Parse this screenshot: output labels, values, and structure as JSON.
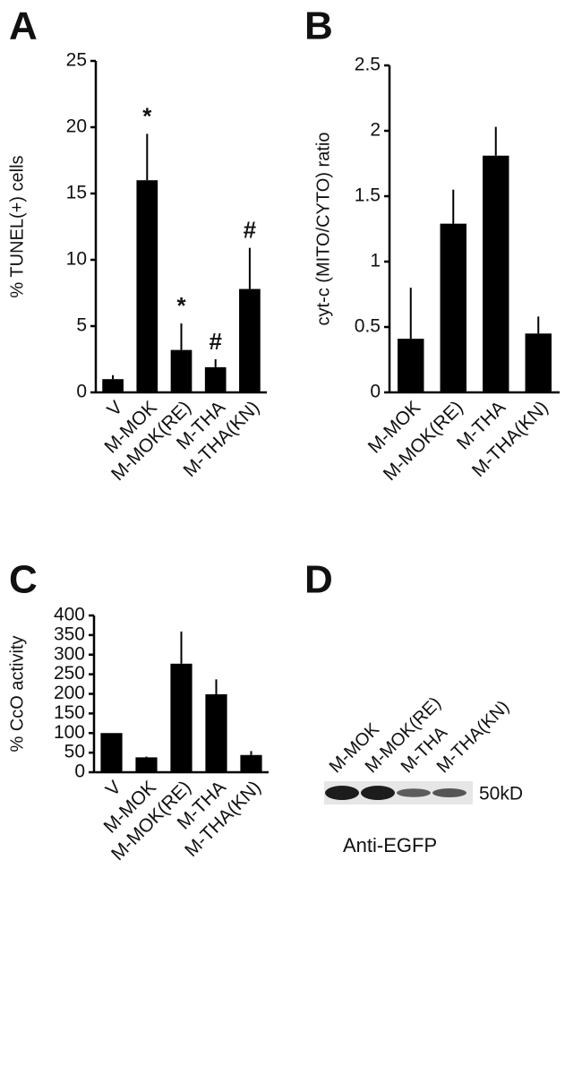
{
  "chart_data": [
    {
      "type": "bar",
      "panel_label": "A",
      "y_label": "% TUNEL(+) cells",
      "categories": [
        "V",
        "M-MOK",
        "M-MOK(RE)",
        "M-THA",
        "M-THA(KN)"
      ],
      "values": [
        1,
        16,
        3.2,
        1.9,
        7.8
      ],
      "errors": [
        0.3,
        3.5,
        2.0,
        0.6,
        3.1
      ],
      "annotations": [
        null,
        "*",
        "*",
        "#",
        "#"
      ],
      "color": "#000000",
      "ylim": [
        0,
        25
      ],
      "yticks": [
        0,
        5,
        10,
        15,
        20,
        25
      ]
    },
    {
      "type": "bar",
      "panel_label": "B",
      "y_label": "cyt-c (MITO/CYTO) ratio",
      "categories": [
        "M-MOK",
        "M-MOK(RE)",
        "M-THA",
        "M-THA(KN)"
      ],
      "values": [
        0.41,
        1.29,
        1.81,
        0.45
      ],
      "errors": [
        0.39,
        0.26,
        0.22,
        0.13
      ],
      "color": "#000000",
      "ylim": [
        0,
        2.5
      ],
      "yticks": [
        0,
        0.5,
        1,
        1.5,
        2,
        2.5
      ]
    },
    {
      "type": "bar",
      "panel_label": "C",
      "y_label": "% CcO activity",
      "categories": [
        "V",
        "M-MOK",
        "M-MOK(RE)",
        "M-THA",
        "M-THA(KN)"
      ],
      "values": [
        100,
        38,
        277,
        199,
        44
      ],
      "errors": [
        null,
        2,
        82,
        38,
        10
      ],
      "color": "#000000",
      "ylim": [
        0,
        400
      ],
      "yticks": [
        0,
        50,
        100,
        150,
        200,
        250,
        300,
        350,
        400
      ]
    },
    {
      "type": "blot",
      "panel_label": "D",
      "categories": [
        "M-MOK",
        "M-MOK(RE)",
        "M-THA",
        "M-THA(KN)"
      ],
      "marker": "50kD",
      "caption": "Anti-EGFP"
    }
  ]
}
